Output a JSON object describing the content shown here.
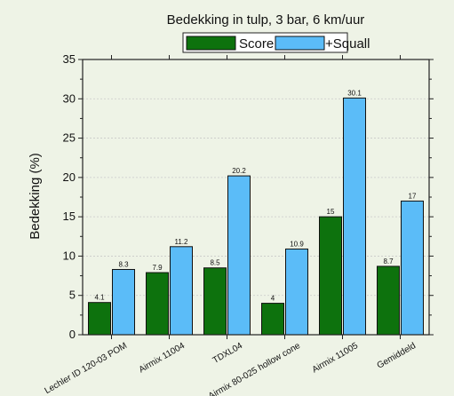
{
  "chart_data": {
    "type": "bar",
    "title": "Bedekking in tulp, 3 bar, 6 km/uur",
    "xlabel": "",
    "ylabel": "Bedekking (%)",
    "ylim": [
      0,
      35
    ],
    "yticks": [
      0,
      5,
      10,
      15,
      20,
      25,
      30,
      35
    ],
    "grid": true,
    "legend_position": "top-center",
    "categories": [
      "Lechler ID 120-03 POM",
      "Airmix 11004",
      "TDXL04",
      "Airmix 80-025 hollow cone",
      "Airmix 11005",
      "Gemiddeld"
    ],
    "series": [
      {
        "name": "Score",
        "color": "#0d720d",
        "values": [
          4.1,
          7.9,
          8.5,
          4,
          15,
          8.7
        ],
        "labels": [
          "4.1",
          "7.9",
          "8.5",
          "4",
          "15",
          "8.7"
        ]
      },
      {
        "name": "+Squall",
        "color": "#5bbcf8",
        "values": [
          8.3,
          11.2,
          20.2,
          10.9,
          30.1,
          17
        ],
        "labels": [
          "8.3",
          "11.2",
          "20.2",
          "10.9",
          "30.1",
          "17"
        ]
      }
    ]
  }
}
